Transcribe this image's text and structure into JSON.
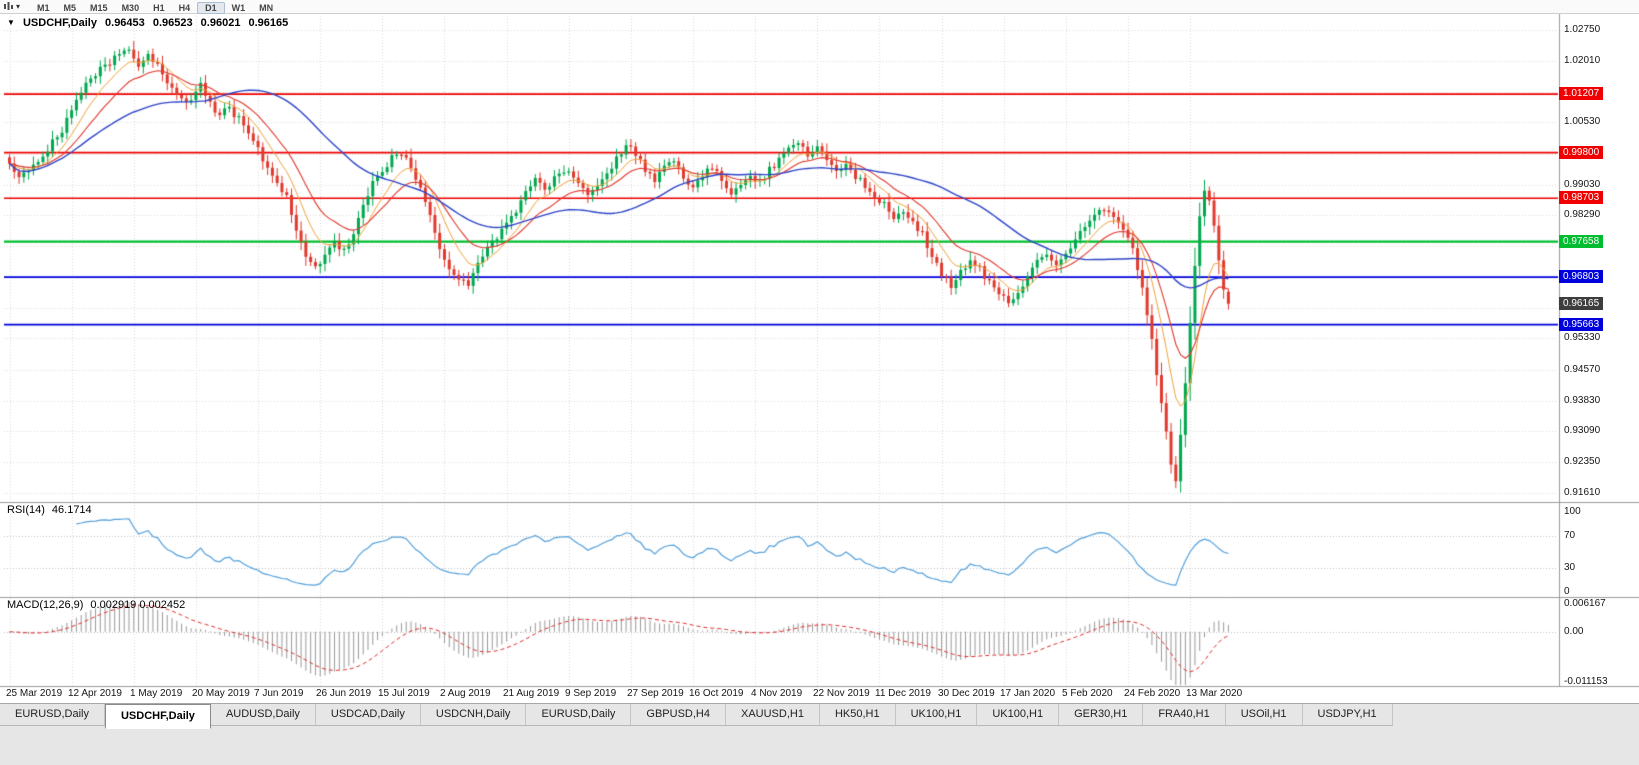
{
  "toolbar": {
    "timeframes": [
      "M1",
      "M5",
      "M15",
      "M30",
      "H1",
      "H4",
      "D1",
      "W1",
      "MN"
    ],
    "active": "D1"
  },
  "chart_data": {
    "type": "candlestick",
    "symbol": "USDCHF",
    "timeframe": "Daily",
    "title": {
      "symbol": "USDCHF,Daily",
      "open": "0.96453",
      "high": "0.96523",
      "low": "0.96021",
      "close": "0.96165"
    },
    "price_axis": {
      "top": 1.0275,
      "bottom": 0.9161,
      "labels": [
        "1.02750",
        "1.02010",
        "1.01270",
        "1.00530",
        "0.99770",
        "0.99030",
        "0.98290",
        "0.97550",
        "0.96810",
        "0.96070",
        "0.95330",
        "0.94570",
        "0.93830",
        "0.93090",
        "0.92350",
        "0.91610"
      ]
    },
    "levels": [
      {
        "price": 1.01207,
        "label": "1.01207",
        "color": "#f00000",
        "width": 1.6
      },
      {
        "price": 0.998,
        "label": "0.99800",
        "color": "#f00000",
        "width": 1.6
      },
      {
        "price": 0.98703,
        "label": "0.98703",
        "color": "#f00000",
        "width": 1.6
      },
      {
        "price": 0.97658,
        "label": "0.97658",
        "color": "#00bd2f",
        "width": 2.2
      },
      {
        "price": 0.96803,
        "label": "0.96803",
        "color": "#0000dc",
        "width": 1.8
      },
      {
        "price": 0.95663,
        "label": "0.95663",
        "color": "#0000dc",
        "width": 1.8
      }
    ],
    "current_price": {
      "value": 0.96165,
      "label": "0.96165",
      "color": "#3d3d3d"
    },
    "x_axis_dates": [
      "25 Mar 2019",
      "12 Apr 2019",
      "1 May 2019",
      "20 May 2019",
      "7 Jun 2019",
      "26 Jun 2019",
      "15 Jul 2019",
      "2 Aug 2019",
      "21 Aug 2019",
      "9 Sep 2019",
      "27 Sep 2019",
      "16 Oct 2019",
      "4 Nov 2019",
      "22 Nov 2019",
      "11 Dec 2019",
      "30 Dec 2019",
      "17 Jan 2020",
      "5 Feb 2020",
      "24 Feb 2020",
      "13 Mar 2020"
    ],
    "bars": 256,
    "label_every": 13,
    "close_anchors": [
      [
        0,
        0.9945
      ],
      [
        2,
        0.9926
      ],
      [
        5,
        0.9952
      ],
      [
        8,
        0.9988
      ],
      [
        11,
        1.0035
      ],
      [
        13,
        1.0085
      ],
      [
        16,
        1.014
      ],
      [
        19,
        1.0178
      ],
      [
        22,
        1.0205
      ],
      [
        25,
        1.0222
      ],
      [
        27,
        1.0196
      ],
      [
        29,
        1.0214
      ],
      [
        31,
        1.0188
      ],
      [
        34,
        1.013
      ],
      [
        37,
        1.0098
      ],
      [
        40,
        1.0138
      ],
      [
        43,
        1.0075
      ],
      [
        46,
        1.009
      ],
      [
        49,
        1.0042
      ],
      [
        52,
        0.9988
      ],
      [
        54,
        0.9948
      ],
      [
        56,
        0.9906
      ],
      [
        58,
        0.9868
      ],
      [
        60,
        0.9792
      ],
      [
        62,
        0.9732
      ],
      [
        64,
        0.9706
      ],
      [
        66,
        0.9726
      ],
      [
        68,
        0.9762
      ],
      [
        70,
        0.9744
      ],
      [
        72,
        0.9792
      ],
      [
        74,
        0.9852
      ],
      [
        76,
        0.9906
      ],
      [
        78,
        0.9936
      ],
      [
        80,
        0.9964
      ],
      [
        82,
        0.9984
      ],
      [
        84,
        0.9942
      ],
      [
        86,
        0.9892
      ],
      [
        88,
        0.9822
      ],
      [
        90,
        0.9752
      ],
      [
        92,
        0.9702
      ],
      [
        94,
        0.9682
      ],
      [
        96,
        0.9666
      ],
      [
        98,
        0.9712
      ],
      [
        100,
        0.9746
      ],
      [
        102,
        0.9776
      ],
      [
        104,
        0.9802
      ],
      [
        106,
        0.9842
      ],
      [
        108,
        0.9882
      ],
      [
        110,
        0.9916
      ],
      [
        112,
        0.9892
      ],
      [
        114,
        0.9922
      ],
      [
        117,
        0.9942
      ],
      [
        119,
        0.9906
      ],
      [
        121,
        0.9872
      ],
      [
        123,
        0.9902
      ],
      [
        125,
        0.9936
      ],
      [
        127,
        0.9966
      ],
      [
        129,
        1.0002
      ],
      [
        131,
        0.9976
      ],
      [
        133,
        0.9942
      ],
      [
        135,
        0.9906
      ],
      [
        137,
        0.9942
      ],
      [
        139,
        0.9962
      ],
      [
        141,
        0.9922
      ],
      [
        143,
        0.9892
      ],
      [
        145,
        0.9922
      ],
      [
        147,
        0.9946
      ],
      [
        149,
        0.9906
      ],
      [
        151,
        0.9876
      ],
      [
        153,
        0.9902
      ],
      [
        155,
        0.9932
      ],
      [
        157,
        0.9906
      ],
      [
        159,
        0.9936
      ],
      [
        161,
        0.9962
      ],
      [
        163,
        0.9986
      ],
      [
        165,
        1.0002
      ],
      [
        167,
        0.9976
      ],
      [
        169,
        0.9992
      ],
      [
        171,
        0.9962
      ],
      [
        173,
        0.9932
      ],
      [
        175,
        0.9956
      ],
      [
        177,
        0.9926
      ],
      [
        179,
        0.9896
      ],
      [
        181,
        0.9872
      ],
      [
        183,
        0.9852
      ],
      [
        185,
        0.9822
      ],
      [
        187,
        0.9842
      ],
      [
        189,
        0.9812
      ],
      [
        191,
        0.9782
      ],
      [
        193,
        0.9732
      ],
      [
        195,
        0.9682
      ],
      [
        197,
        0.9662
      ],
      [
        199,
        0.9692
      ],
      [
        201,
        0.9722
      ],
      [
        203,
        0.9702
      ],
      [
        205,
        0.9666
      ],
      [
        207,
        0.9642
      ],
      [
        209,
        0.9622
      ],
      [
        211,
        0.9652
      ],
      [
        213,
        0.9682
      ],
      [
        215,
        0.9712
      ],
      [
        217,
        0.9732
      ],
      [
        219,
        0.9716
      ],
      [
        221,
        0.9736
      ],
      [
        223,
        0.9772
      ],
      [
        225,
        0.9802
      ],
      [
        227,
        0.9832
      ],
      [
        229,
        0.9848
      ],
      [
        231,
        0.9826
      ],
      [
        233,
        0.9792
      ],
      [
        235,
        0.9742
      ],
      [
        237,
        0.9652
      ],
      [
        239,
        0.9522
      ],
      [
        241,
        0.9382
      ],
      [
        243,
        0.9232
      ],
      [
        244,
        0.9192
      ],
      [
        245,
        0.9302
      ],
      [
        246,
        0.9422
      ],
      [
        247,
        0.9562
      ],
      [
        248,
        0.9702
      ],
      [
        249,
        0.9822
      ],
      [
        250,
        0.9882
      ],
      [
        251,
        0.9858
      ],
      [
        252,
        0.9798
      ],
      [
        253,
        0.9718
      ],
      [
        254,
        0.9642
      ],
      [
        255,
        0.96165
      ]
    ],
    "last_bar": {
      "open": 0.96453,
      "high": 0.96523,
      "low": 0.96021,
      "close": 0.96165
    },
    "colors": {
      "up": "#00a84e",
      "down": "#e03a2e",
      "ma_fast": "#f0a43c",
      "ma_mid": "#e03a2e",
      "ma_slow": "#2f46c8"
    }
  },
  "rsi": {
    "name": "RSI(14)",
    "value": "46.1714",
    "axis": [
      "100",
      "70",
      "30",
      "0"
    ],
    "levels": [
      70,
      30
    ],
    "color": "#55a1dc"
  },
  "macd": {
    "name": "MACD(12,26,9)",
    "values": "0.002919 0.002452",
    "axis": [
      "0.006167",
      "0.00",
      "-0.011153"
    ],
    "max": 0.006167,
    "min": -0.011153,
    "histogram_color": "#9a9a9a",
    "signal_color": "#e03030"
  },
  "tabs": {
    "items": [
      "EURUSD,Daily",
      "USDCHF,Daily",
      "AUDUSD,Daily",
      "USDCAD,Daily",
      "USDCNH,Daily",
      "EURUSD,Daily",
      "GBPUSD,H4",
      "XAUUSD,H1",
      "HK50,H1",
      "UK100,H1",
      "UK100,H1",
      "GER30,H1",
      "FRA40,H1",
      "USOil,H1",
      "USDJPY,H1"
    ],
    "active_index": 1
  }
}
